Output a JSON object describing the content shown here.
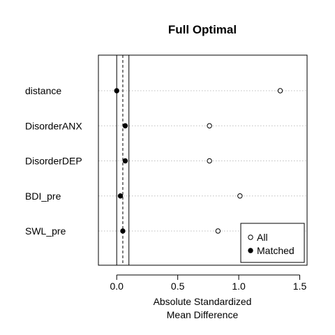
{
  "chart_data": {
    "type": "scatter",
    "title": "Full Optimal",
    "xlabel": "Absolute Standardized\nMean Difference",
    "ylabel": "",
    "xlim": [
      -0.15,
      1.56
    ],
    "xticks": [
      0.0,
      0.5,
      1.0,
      1.5
    ],
    "xtick_labels": [
      "0.0",
      "0.5",
      "1.0",
      "1.5"
    ],
    "categories": [
      "distance",
      "DisorderANX",
      "DisorderDEP",
      "BDI_pre",
      "SWL_pre"
    ],
    "series": [
      {
        "name": "All",
        "marker": "open-circle",
        "values": [
          1.34,
          0.76,
          0.76,
          1.01,
          0.83
        ]
      },
      {
        "name": "Matched",
        "marker": "filled-circle",
        "values": [
          0.0,
          0.07,
          0.07,
          0.03,
          0.05
        ]
      }
    ],
    "reference_lines": {
      "solid": [
        0.0,
        0.1
      ],
      "dashed": [
        0.05
      ]
    },
    "row_gridlines": "dotted",
    "legend_position": "bottom-right",
    "colors": {
      "ink": "#000000",
      "grid": "#bebebe",
      "background": "#ffffff"
    }
  }
}
